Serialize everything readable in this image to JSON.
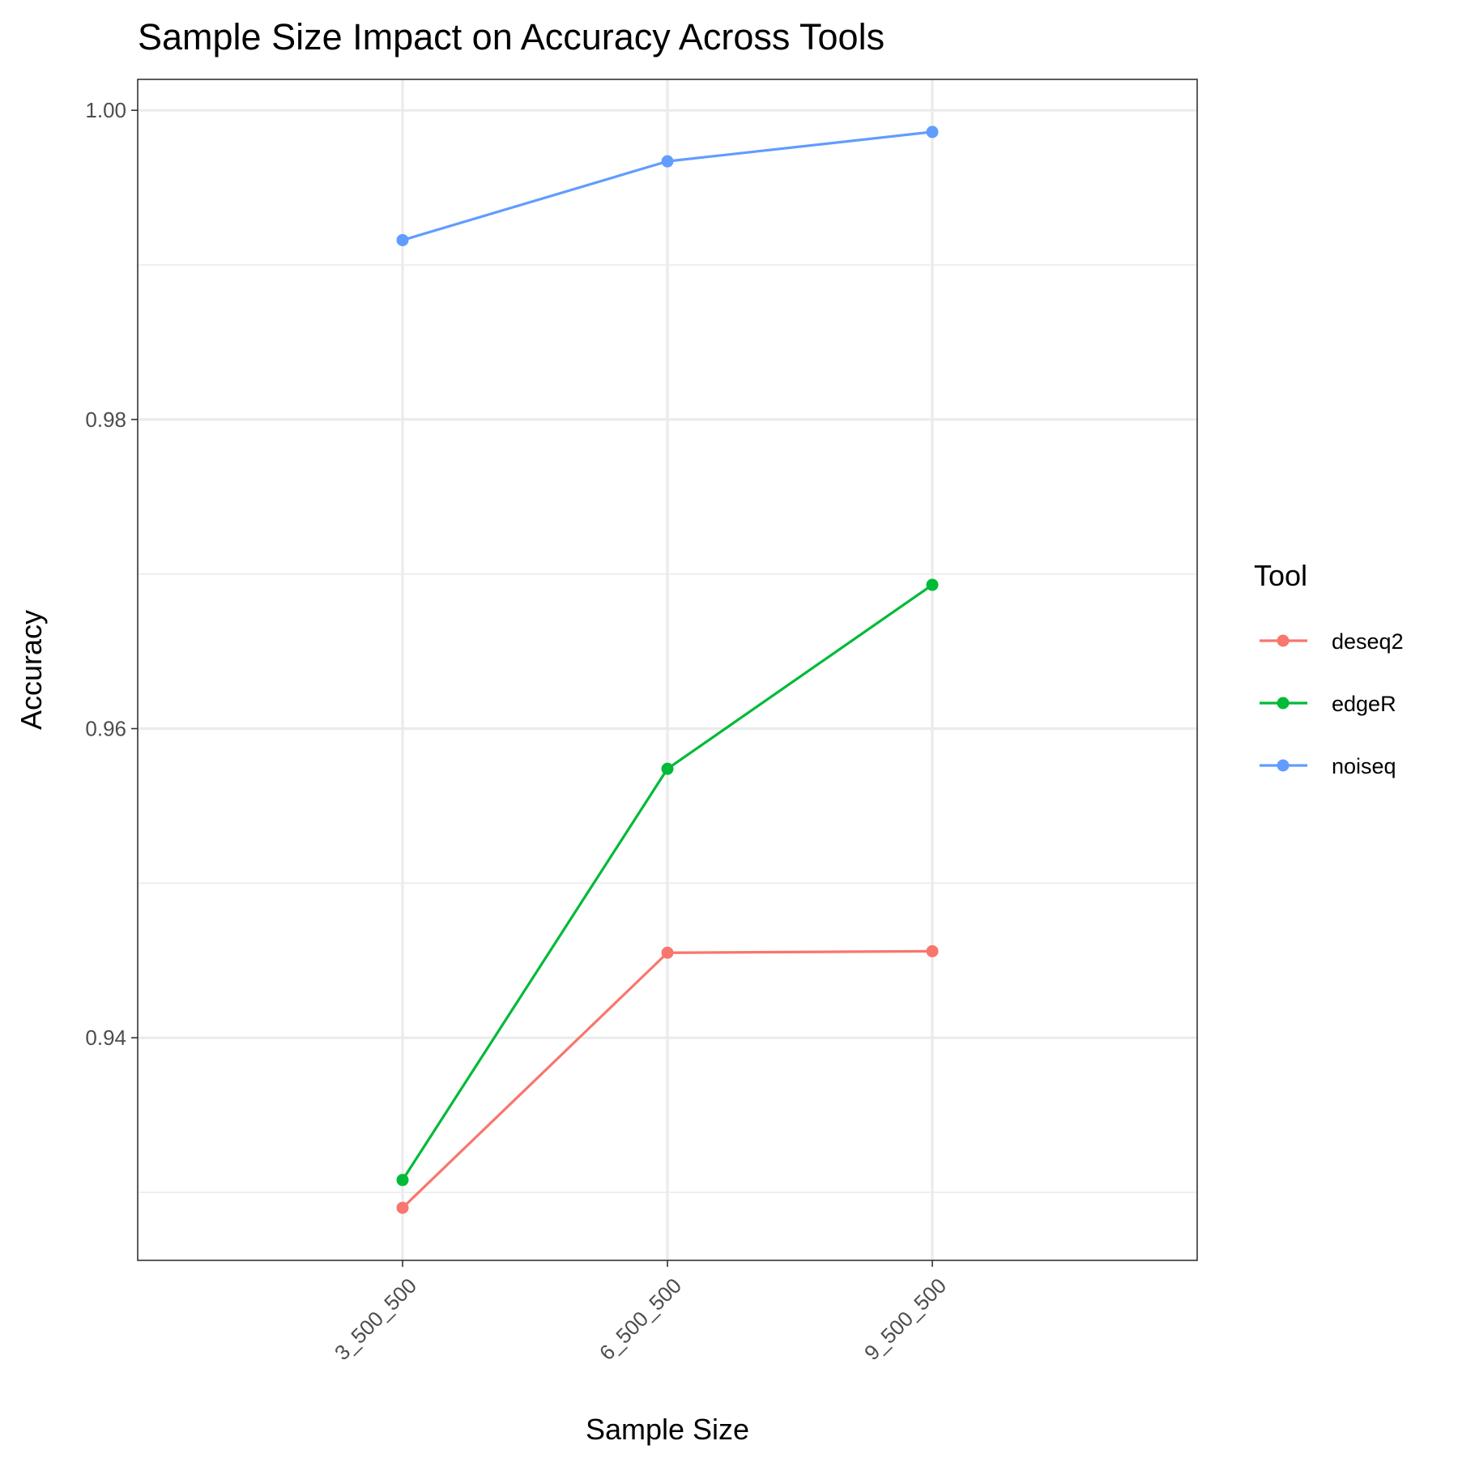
{
  "chart_data": {
    "type": "line",
    "title": "Sample Size Impact on Accuracy Across Tools",
    "xlabel": "Sample Size",
    "ylabel": "Accuracy",
    "categories": [
      "3_500_500",
      "6_500_500",
      "9_500_500"
    ],
    "ylim": [
      0.9256,
      1.002
    ],
    "yticks": [
      0.94,
      0.96,
      0.98,
      1.0
    ],
    "ytick_labels": [
      "0.94",
      "0.96",
      "0.98",
      "1.00"
    ],
    "grid": true,
    "legend_title": "Tool",
    "legend_position": "right",
    "series": [
      {
        "name": "deseq2",
        "color": "#F8766D",
        "values": [
          0.929,
          0.9455,
          0.9456
        ]
      },
      {
        "name": "edgeR",
        "color": "#00BA38",
        "values": [
          0.9308,
          0.9574,
          0.9693
        ]
      },
      {
        "name": "noiseq",
        "color": "#619CFF",
        "values": [
          0.9916,
          0.9967,
          0.9986
        ]
      }
    ]
  }
}
